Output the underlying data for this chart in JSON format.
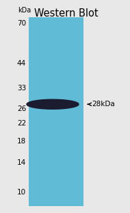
{
  "title": "Western Blot",
  "kda_label_header": "kDa",
  "kda_labels": [
    70,
    44,
    33,
    26,
    22,
    18,
    14,
    10
  ],
  "band_annotation": "←28kDa",
  "band_kda": 27.5,
  "y_min": 8.5,
  "y_max": 75,
  "gel_bg_color": "#60bcd6",
  "outer_bg_color": "#e8e8e8",
  "band_color": "#1c1c30",
  "title_fontsize": 10.5,
  "label_fontsize": 7.5,
  "annotation_fontsize": 7.5
}
